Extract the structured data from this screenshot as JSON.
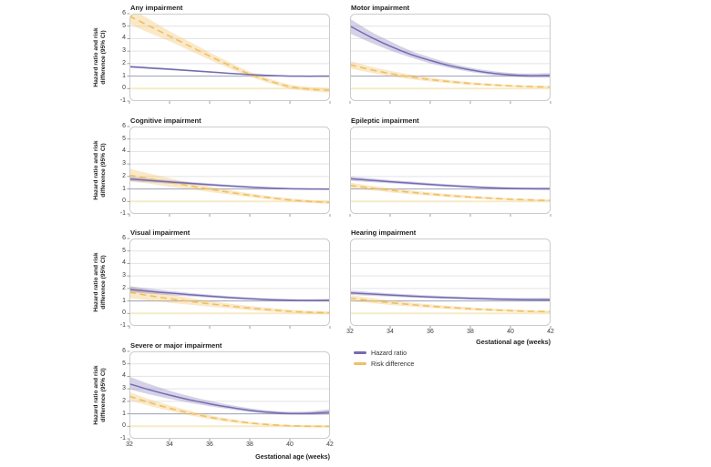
{
  "figure": {
    "description": "Seven-panel line chart figure of hazard ratios and risk differences (95% CI) by gestational age for impairment outcomes"
  },
  "axes": {
    "y_label": "Hazard ratio and risk difference (95% CI)",
    "x_label": "Gestational age (weeks)",
    "y_ticks": [
      6,
      5,
      4,
      3,
      2,
      1,
      0,
      -1
    ],
    "x_ticks": [
      32,
      34,
      36,
      38,
      40,
      42
    ],
    "y_range": [
      -1,
      6
    ],
    "x_range": [
      32,
      42
    ],
    "grid": "horizontal",
    "reference_lines": {
      "hazard_ratio_null": 1,
      "risk_difference_null": 0
    }
  },
  "legend": {
    "position": "below-right-column",
    "items": [
      {
        "label": "Hazard ratio",
        "color": "#756bb1",
        "dashed": false
      },
      {
        "label": "Risk difference",
        "color": "#f0bf62",
        "dashed": true
      }
    ]
  },
  "colors": {
    "hazard_ratio": "#756bb1",
    "hazard_ratio_band": "rgba(117,107,177,0.30)",
    "risk_difference": "#f0bf62",
    "risk_difference_band": "rgba(240,191,98,0.35)",
    "grid": "#e3e3e6",
    "ref_one": "#9aa0b2",
    "ref_zero": "#f6ebc8",
    "panel_border": "#cccccc",
    "tick": "#8a8a8a"
  },
  "chart_data": [
    {
      "type": "line",
      "title": "Any impairment",
      "x": [
        32,
        33,
        34,
        35,
        36,
        37,
        38,
        39,
        40,
        41,
        42
      ],
      "series": [
        {
          "name": "Hazard ratio",
          "values": [
            1.75,
            1.65,
            1.55,
            1.44,
            1.33,
            1.22,
            1.12,
            1.05,
            1.0,
            0.99,
            1.0
          ],
          "hi": [
            1.85,
            1.74,
            1.63,
            1.51,
            1.39,
            1.27,
            1.16,
            1.09,
            1.04,
            1.03,
            1.05
          ],
          "lo": [
            1.66,
            1.57,
            1.47,
            1.37,
            1.27,
            1.17,
            1.08,
            1.01,
            0.96,
            0.95,
            0.95
          ]
        },
        {
          "name": "Risk difference",
          "values": [
            5.8,
            5.0,
            4.2,
            3.4,
            2.6,
            1.85,
            1.15,
            0.6,
            0.15,
            -0.05,
            -0.15
          ],
          "hi": [
            6.45,
            5.55,
            4.6,
            3.75,
            2.9,
            2.1,
            1.35,
            0.78,
            0.32,
            0.12,
            0.02
          ],
          "lo": [
            5.15,
            4.45,
            3.8,
            3.05,
            2.3,
            1.6,
            0.95,
            0.42,
            -0.02,
            -0.22,
            -0.32
          ]
        }
      ]
    },
    {
      "type": "line",
      "title": "Motor impairment",
      "x": [
        32,
        33,
        34,
        35,
        36,
        37,
        38,
        39,
        40,
        41,
        42
      ],
      "series": [
        {
          "name": "Hazard ratio",
          "values": [
            5.0,
            4.15,
            3.4,
            2.75,
            2.25,
            1.82,
            1.5,
            1.25,
            1.1,
            1.03,
            1.05
          ],
          "hi": [
            5.6,
            4.6,
            3.8,
            3.05,
            2.5,
            2.03,
            1.68,
            1.42,
            1.25,
            1.2,
            1.25
          ],
          "lo": [
            4.4,
            3.7,
            3.05,
            2.5,
            2.02,
            1.63,
            1.33,
            1.1,
            0.96,
            0.88,
            0.88
          ]
        },
        {
          "name": "Risk difference",
          "values": [
            1.9,
            1.52,
            1.2,
            0.93,
            0.72,
            0.55,
            0.41,
            0.3,
            0.22,
            0.16,
            0.12
          ],
          "hi": [
            2.2,
            1.78,
            1.42,
            1.12,
            0.88,
            0.68,
            0.52,
            0.4,
            0.3,
            0.24,
            0.2
          ],
          "lo": [
            1.6,
            1.28,
            1.0,
            0.75,
            0.57,
            0.42,
            0.3,
            0.2,
            0.13,
            0.08,
            0.04
          ]
        }
      ]
    },
    {
      "type": "line",
      "title": "Cognitive impairment",
      "x": [
        32,
        33,
        34,
        35,
        36,
        37,
        38,
        39,
        40,
        41,
        42
      ],
      "series": [
        {
          "name": "Hazard ratio",
          "values": [
            1.8,
            1.68,
            1.56,
            1.45,
            1.34,
            1.24,
            1.15,
            1.08,
            1.02,
            1.0,
            0.99
          ],
          "hi": [
            1.98,
            1.84,
            1.7,
            1.57,
            1.45,
            1.33,
            1.23,
            1.14,
            1.08,
            1.06,
            1.06
          ],
          "lo": [
            1.63,
            1.53,
            1.43,
            1.34,
            1.24,
            1.15,
            1.07,
            1.01,
            0.96,
            0.94,
            0.93
          ]
        },
        {
          "name": "Risk difference",
          "values": [
            2.1,
            1.82,
            1.52,
            1.25,
            0.98,
            0.73,
            0.5,
            0.3,
            0.12,
            0.0,
            -0.08
          ],
          "hi": [
            2.62,
            2.24,
            1.87,
            1.52,
            1.2,
            0.9,
            0.64,
            0.43,
            0.24,
            0.12,
            0.04
          ],
          "lo": [
            1.6,
            1.42,
            1.18,
            0.98,
            0.76,
            0.55,
            0.35,
            0.17,
            0.0,
            -0.12,
            -0.2
          ]
        }
      ]
    },
    {
      "type": "line",
      "title": "Epileptic impairment",
      "x": [
        32,
        33,
        34,
        35,
        36,
        37,
        38,
        39,
        40,
        41,
        42
      ],
      "series": [
        {
          "name": "Hazard ratio",
          "values": [
            1.82,
            1.7,
            1.58,
            1.47,
            1.36,
            1.26,
            1.17,
            1.1,
            1.05,
            1.02,
            1.01
          ],
          "hi": [
            2.0,
            1.86,
            1.72,
            1.6,
            1.48,
            1.37,
            1.27,
            1.19,
            1.14,
            1.12,
            1.13
          ],
          "lo": [
            1.65,
            1.55,
            1.45,
            1.35,
            1.25,
            1.16,
            1.08,
            1.01,
            0.96,
            0.93,
            0.91
          ]
        },
        {
          "name": "Risk difference",
          "values": [
            1.28,
            1.08,
            0.9,
            0.74,
            0.59,
            0.46,
            0.35,
            0.26,
            0.18,
            0.12,
            0.08
          ],
          "hi": [
            1.5,
            1.27,
            1.07,
            0.89,
            0.72,
            0.58,
            0.46,
            0.35,
            0.26,
            0.2,
            0.16
          ],
          "lo": [
            1.06,
            0.9,
            0.73,
            0.59,
            0.46,
            0.34,
            0.24,
            0.16,
            0.09,
            0.04,
            0.0
          ]
        }
      ]
    },
    {
      "type": "line",
      "title": "Visual impairment",
      "x": [
        32,
        33,
        34,
        35,
        36,
        37,
        38,
        39,
        40,
        41,
        42
      ],
      "series": [
        {
          "name": "Hazard ratio",
          "values": [
            1.92,
            1.77,
            1.63,
            1.5,
            1.38,
            1.27,
            1.18,
            1.1,
            1.06,
            1.04,
            1.05
          ],
          "hi": [
            2.18,
            1.99,
            1.81,
            1.65,
            1.51,
            1.38,
            1.28,
            1.2,
            1.15,
            1.14,
            1.16
          ],
          "lo": [
            1.7,
            1.58,
            1.46,
            1.36,
            1.26,
            1.16,
            1.08,
            1.01,
            0.97,
            0.95,
            0.95
          ]
        },
        {
          "name": "Risk difference",
          "values": [
            1.68,
            1.42,
            1.18,
            0.97,
            0.77,
            0.59,
            0.43,
            0.29,
            0.17,
            0.09,
            0.05
          ],
          "hi": [
            2.18,
            1.83,
            1.52,
            1.25,
            1.0,
            0.78,
            0.6,
            0.44,
            0.3,
            0.21,
            0.17
          ],
          "lo": [
            1.22,
            1.03,
            0.85,
            0.69,
            0.54,
            0.4,
            0.26,
            0.14,
            0.04,
            -0.03,
            -0.07
          ]
        }
      ]
    },
    {
      "type": "line",
      "title": "Hearing impairment",
      "x": [
        32,
        33,
        34,
        35,
        36,
        37,
        38,
        39,
        40,
        41,
        42
      ],
      "series": [
        {
          "name": "Hazard ratio",
          "values": [
            1.65,
            1.56,
            1.47,
            1.39,
            1.32,
            1.26,
            1.21,
            1.16,
            1.13,
            1.11,
            1.1
          ],
          "hi": [
            1.84,
            1.72,
            1.61,
            1.52,
            1.44,
            1.37,
            1.31,
            1.27,
            1.24,
            1.23,
            1.24
          ],
          "lo": [
            1.48,
            1.41,
            1.34,
            1.27,
            1.21,
            1.15,
            1.11,
            1.06,
            1.03,
            1.0,
            0.97
          ]
        },
        {
          "name": "Risk difference",
          "values": [
            1.22,
            1.03,
            0.86,
            0.71,
            0.58,
            0.47,
            0.37,
            0.29,
            0.22,
            0.17,
            0.14
          ],
          "hi": [
            1.46,
            1.24,
            1.04,
            0.87,
            0.72,
            0.6,
            0.49,
            0.4,
            0.32,
            0.26,
            0.23
          ],
          "lo": [
            0.98,
            0.83,
            0.68,
            0.55,
            0.44,
            0.34,
            0.25,
            0.18,
            0.12,
            0.08,
            0.05
          ]
        }
      ]
    },
    {
      "type": "line",
      "title": "Severe or major impairment",
      "x": [
        32,
        33,
        34,
        35,
        36,
        37,
        38,
        39,
        40,
        41,
        42
      ],
      "series": [
        {
          "name": "Hazard ratio",
          "values": [
            3.4,
            2.92,
            2.5,
            2.12,
            1.8,
            1.52,
            1.28,
            1.12,
            1.03,
            1.04,
            1.14
          ],
          "hi": [
            3.98,
            3.38,
            2.86,
            2.42,
            2.04,
            1.71,
            1.44,
            1.26,
            1.16,
            1.2,
            1.38
          ],
          "lo": [
            2.95,
            2.56,
            2.2,
            1.88,
            1.6,
            1.36,
            1.14,
            1.0,
            0.91,
            0.9,
            0.93
          ]
        },
        {
          "name": "Risk difference",
          "values": [
            2.4,
            1.9,
            1.45,
            1.06,
            0.73,
            0.47,
            0.27,
            0.13,
            0.04,
            0.0,
            -0.01
          ],
          "hi": [
            2.73,
            2.17,
            1.68,
            1.25,
            0.89,
            0.6,
            0.37,
            0.21,
            0.11,
            0.07,
            0.07
          ],
          "lo": [
            2.08,
            1.64,
            1.23,
            0.88,
            0.57,
            0.33,
            0.16,
            0.04,
            -0.04,
            -0.08,
            -0.09
          ]
        }
      ]
    }
  ]
}
